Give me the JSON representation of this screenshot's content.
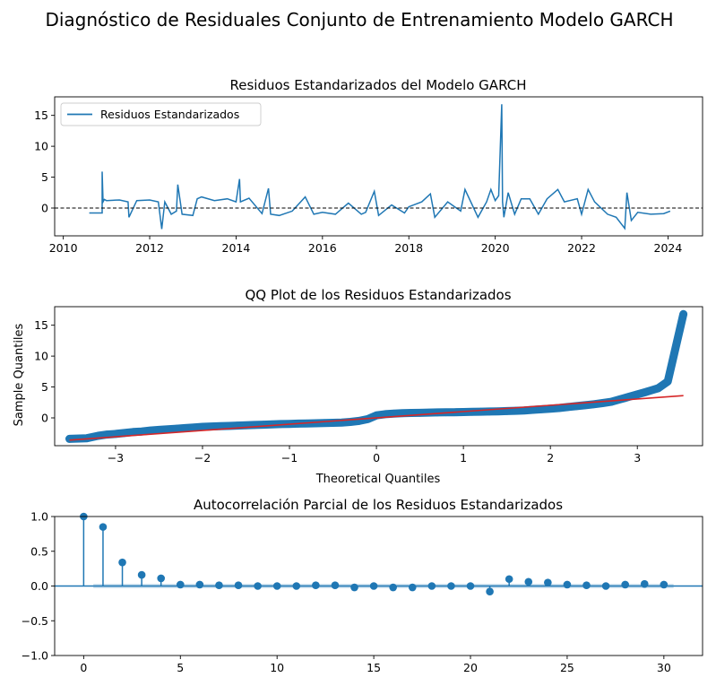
{
  "suptitle": "Diagnóstico de Residuales Conjunto de Entrenamiento Modelo GARCH",
  "chart_data": [
    {
      "type": "line",
      "title": "Residuos Estandarizados del Modelo GARCH",
      "xlabel": "",
      "ylabel": "",
      "xlim": [
        2009.8,
        2024.8
      ],
      "ylim": [
        -4.5,
        18.0
      ],
      "xticks": [
        2010,
        2012,
        2014,
        2016,
        2018,
        2020,
        2022,
        2024
      ],
      "yticks": [
        0,
        5,
        10,
        15
      ],
      "legend": {
        "position": "top-left",
        "entries": [
          "Residuos Estandarizados"
        ]
      },
      "reference_line": {
        "y": 0,
        "style": "dashed",
        "color": "#000000"
      },
      "series": [
        {
          "name": "Residuos Estandarizados",
          "color": "#1f77b4",
          "x": [
            2010.6,
            2010.9,
            2010.9,
            2010.92,
            2010.95,
            2011.0,
            2011.3,
            2011.5,
            2011.52,
            2011.7,
            2012.0,
            2012.2,
            2012.28,
            2012.35,
            2012.5,
            2012.62,
            2012.65,
            2012.75,
            2013.0,
            2013.1,
            2013.2,
            2013.5,
            2013.8,
            2014.0,
            2014.08,
            2014.1,
            2014.3,
            2014.6,
            2014.75,
            2014.8,
            2015.0,
            2015.3,
            2015.6,
            2015.8,
            2016.0,
            2016.3,
            2016.6,
            2016.9,
            2017.0,
            2017.2,
            2017.3,
            2017.6,
            2017.9,
            2018.0,
            2018.3,
            2018.5,
            2018.6,
            2018.9,
            2019.2,
            2019.3,
            2019.6,
            2019.8,
            2019.9,
            2020.0,
            2020.08,
            2020.15,
            2020.17,
            2020.2,
            2020.3,
            2020.45,
            2020.6,
            2020.8,
            2021.0,
            2021.2,
            2021.45,
            2021.6,
            2021.9,
            2022.0,
            2022.15,
            2022.3,
            2022.6,
            2022.8,
            2023.0,
            2023.05,
            2023.15,
            2023.3,
            2023.6,
            2023.9,
            2024.05
          ],
          "values": [
            -0.8,
            -0.8,
            5.9,
            1.0,
            1.4,
            1.2,
            1.3,
            1.0,
            -1.5,
            1.2,
            1.3,
            1.0,
            -3.4,
            1.0,
            -1.0,
            -0.5,
            3.8,
            -1.0,
            -1.2,
            1.5,
            1.8,
            1.2,
            1.5,
            1.0,
            4.7,
            1.0,
            1.6,
            -0.9,
            3.2,
            -1.0,
            -1.2,
            -0.5,
            1.8,
            -1.0,
            -0.7,
            -1.0,
            0.8,
            -1.0,
            -0.7,
            2.7,
            -1.2,
            0.5,
            -0.8,
            0.2,
            1.0,
            2.3,
            -1.5,
            1.0,
            -0.5,
            3.0,
            -1.5,
            1.0,
            3.0,
            1.2,
            2.0,
            16.8,
            1.0,
            -1.5,
            2.5,
            -1.0,
            1.5,
            1.5,
            -1.0,
            1.5,
            3.0,
            1.0,
            1.5,
            -1.0,
            3.0,
            1.0,
            -1.0,
            -1.5,
            -3.3,
            2.5,
            -2.0,
            -0.7,
            -1.0,
            -0.9,
            -0.5
          ]
        }
      ]
    },
    {
      "type": "scatter",
      "title": "QQ Plot de los Residuos Estandarizados",
      "xlabel": "Theoretical Quantiles",
      "ylabel": "Sample Quantiles",
      "xlim": [
        -3.7,
        3.75
      ],
      "ylim": [
        -4.5,
        18.0
      ],
      "xticks": [
        -3,
        -2,
        -1,
        0,
        1,
        2,
        3
      ],
      "yticks": [
        0,
        5,
        10,
        15
      ],
      "series": [
        {
          "name": "",
          "color": "#1f77b4",
          "x": [
            -3.53,
            -3.33,
            -3.2,
            -3.1,
            -3.0,
            -2.9,
            -2.8,
            -2.7,
            -2.6,
            -2.5,
            -2.4,
            -2.3,
            -2.2,
            -2.1,
            -2.0,
            -1.9,
            -1.8,
            -1.7,
            -1.6,
            -1.5,
            -1.4,
            -1.3,
            -1.2,
            -1.1,
            -1.0,
            -0.9,
            -0.8,
            -0.7,
            -0.6,
            -0.5,
            -0.4,
            -0.3,
            -0.2,
            -0.1,
            0.0,
            0.1,
            0.2,
            0.3,
            0.4,
            0.5,
            0.6,
            0.7,
            0.8,
            0.9,
            1.0,
            1.1,
            1.2,
            1.3,
            1.4,
            1.5,
            1.6,
            1.7,
            1.8,
            1.9,
            2.0,
            2.1,
            2.2,
            2.3,
            2.4,
            2.5,
            2.6,
            2.7,
            2.8,
            2.85,
            2.9,
            2.95,
            3.0,
            3.05,
            3.1,
            3.17,
            3.24,
            3.35,
            3.53
          ],
          "values": [
            -3.4,
            -3.3,
            -2.9,
            -2.7,
            -2.6,
            -2.45,
            -2.3,
            -2.2,
            -2.05,
            -1.95,
            -1.85,
            -1.75,
            -1.65,
            -1.55,
            -1.45,
            -1.4,
            -1.35,
            -1.3,
            -1.25,
            -1.2,
            -1.15,
            -1.1,
            -1.05,
            -1.0,
            -0.97,
            -0.93,
            -0.9,
            -0.87,
            -0.83,
            -0.8,
            -0.75,
            -0.65,
            -0.5,
            -0.2,
            0.4,
            0.6,
            0.7,
            0.75,
            0.8,
            0.82,
            0.85,
            0.88,
            0.9,
            0.92,
            0.95,
            0.97,
            1.0,
            1.03,
            1.06,
            1.1,
            1.15,
            1.2,
            1.3,
            1.4,
            1.5,
            1.6,
            1.75,
            1.9,
            2.05,
            2.2,
            2.4,
            2.6,
            3.0,
            3.2,
            3.4,
            3.6,
            3.8,
            4.0,
            4.2,
            4.5,
            4.8,
            5.9,
            16.8
          ]
        },
        {
          "name": "",
          "color": "#d62728",
          "type": "line",
          "x": [
            -3.53,
            3.53
          ],
          "values": [
            -3.6,
            3.6
          ]
        }
      ]
    },
    {
      "type": "stem",
      "title": "Autocorrelación Parcial de los Residuos Estandarizados",
      "xlabel": "",
      "ylabel": "",
      "xlim": [
        -1.5,
        32
      ],
      "ylim": [
        -1.0,
        1.0
      ],
      "xticks": [
        0,
        5,
        10,
        15,
        20,
        25,
        30
      ],
      "yticks": [
        -1.0,
        -0.5,
        0.0,
        0.5,
        1.0
      ],
      "confidence_band": 0.03,
      "series": [
        {
          "name": "",
          "color": "#1f77b4",
          "x": [
            0,
            1,
            2,
            3,
            4,
            5,
            6,
            7,
            8,
            9,
            10,
            11,
            12,
            13,
            14,
            15,
            16,
            17,
            18,
            19,
            20,
            21,
            22,
            23,
            24,
            25,
            26,
            27,
            28,
            29,
            30
          ],
          "values": [
            1.0,
            0.85,
            0.34,
            0.16,
            0.11,
            0.02,
            0.02,
            0.01,
            0.01,
            0.0,
            0.0,
            0.0,
            0.01,
            0.01,
            -0.02,
            0.0,
            -0.02,
            -0.02,
            0.0,
            0.0,
            0.0,
            -0.08,
            0.1,
            0.06,
            0.05,
            0.02,
            0.01,
            0.0,
            0.02,
            0.03,
            0.02
          ]
        }
      ]
    }
  ]
}
